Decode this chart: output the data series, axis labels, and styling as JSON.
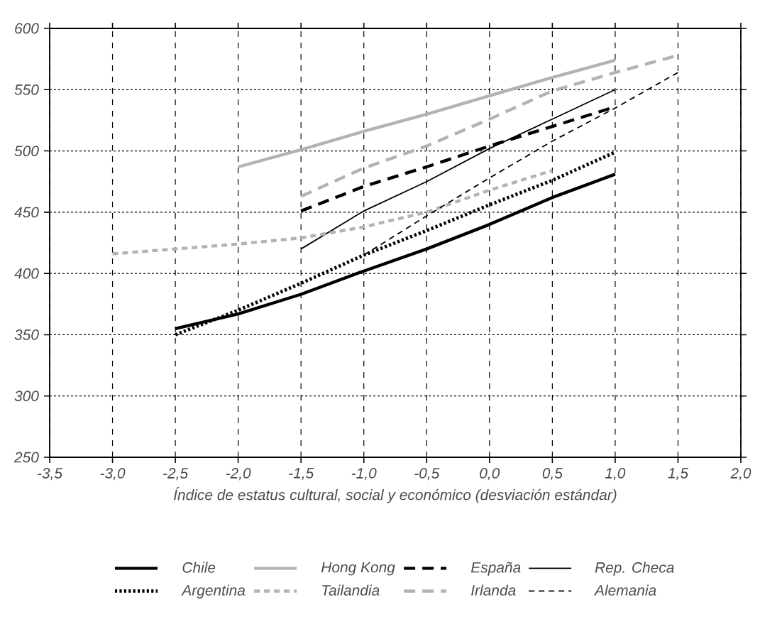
{
  "chart_data": {
    "type": "line",
    "xlabel": "Índice de estatus cultural, social y económico (desviación estándar)",
    "xlim": [
      -3.5,
      2.0
    ],
    "ylim": [
      250,
      600
    ],
    "xticks": [
      {
        "value": -3.5,
        "label": "-3,5"
      },
      {
        "value": -3.0,
        "label": "-3,0"
      },
      {
        "value": -2.5,
        "label": "-2,5"
      },
      {
        "value": -2.0,
        "label": "-2,0"
      },
      {
        "value": -1.5,
        "label": "-1,5"
      },
      {
        "value": -1.0,
        "label": "-1,0"
      },
      {
        "value": -0.5,
        "label": "-0,5"
      },
      {
        "value": 0.0,
        "label": "0,0"
      },
      {
        "value": 0.5,
        "label": "0,5"
      },
      {
        "value": 1.0,
        "label": "1,0"
      },
      {
        "value": 1.5,
        "label": "1,5"
      },
      {
        "value": 2.0,
        "label": "2,0"
      }
    ],
    "yticks": [
      250,
      300,
      350,
      400,
      450,
      500,
      550,
      600
    ],
    "grid": true,
    "legend": "bottom",
    "marker": "none",
    "series": [
      {
        "name": "Chile",
        "color": "#000000",
        "line_style": "solid",
        "x": [
          -2.5,
          -2.0,
          -1.5,
          -1.0,
          -0.5,
          0.0,
          0.5,
          1.0
        ],
        "values": [
          355,
          367,
          383,
          402,
          420,
          440,
          462,
          481
        ]
      },
      {
        "name": "Hong Kong",
        "color": "#b3b3b3",
        "line_style": "solid",
        "x": [
          -2.0,
          -1.5,
          -1.0,
          -0.5,
          0.0,
          0.5,
          1.0
        ],
        "values": [
          487,
          501,
          516,
          530,
          545,
          560,
          574
        ]
      },
      {
        "name": "España",
        "color": "#000000",
        "line_style": "dashed",
        "x": [
          -1.5,
          -1.0,
          -0.5,
          0.0,
          0.5,
          1.0
        ],
        "values": [
          451,
          471,
          487,
          504,
          520,
          536
        ]
      },
      {
        "name": "Rep. Checa",
        "color": "#000000",
        "line_style": "solid",
        "x": [
          -1.5,
          -1.0,
          -0.5,
          0.0,
          0.5,
          1.0
        ],
        "values": [
          420,
          451,
          475,
          502,
          526,
          550
        ]
      },
      {
        "name": "Argentina",
        "color": "#000000",
        "line_style": "dotted",
        "x": [
          -2.5,
          -2.0,
          -1.5,
          -1.0,
          -0.5,
          0.0,
          0.5,
          1.0
        ],
        "values": [
          350,
          370,
          392,
          415,
          435,
          456,
          476,
          499
        ]
      },
      {
        "name": "Tailandia",
        "color": "#b3b3b3",
        "line_style": "dashed",
        "x": [
          -3.0,
          -2.5,
          -2.0,
          -1.5,
          -1.0,
          -0.5,
          0.0,
          0.5
        ],
        "values": [
          416,
          420,
          424,
          429,
          438,
          450,
          468,
          484
        ]
      },
      {
        "name": "Irlanda",
        "color": "#b3b3b3",
        "line_style": "dashed",
        "x": [
          -1.5,
          -1.0,
          -0.5,
          0.0,
          0.5,
          1.0,
          1.5
        ],
        "values": [
          463,
          486,
          504,
          526,
          549,
          564,
          578
        ]
      },
      {
        "name": "Alemania",
        "color": "#000000",
        "line_style": "dashed",
        "x": [
          -1.0,
          -0.5,
          0.0,
          0.5,
          1.0,
          1.5
        ],
        "values": [
          415,
          447,
          478,
          508,
          535,
          564
        ]
      }
    ]
  }
}
